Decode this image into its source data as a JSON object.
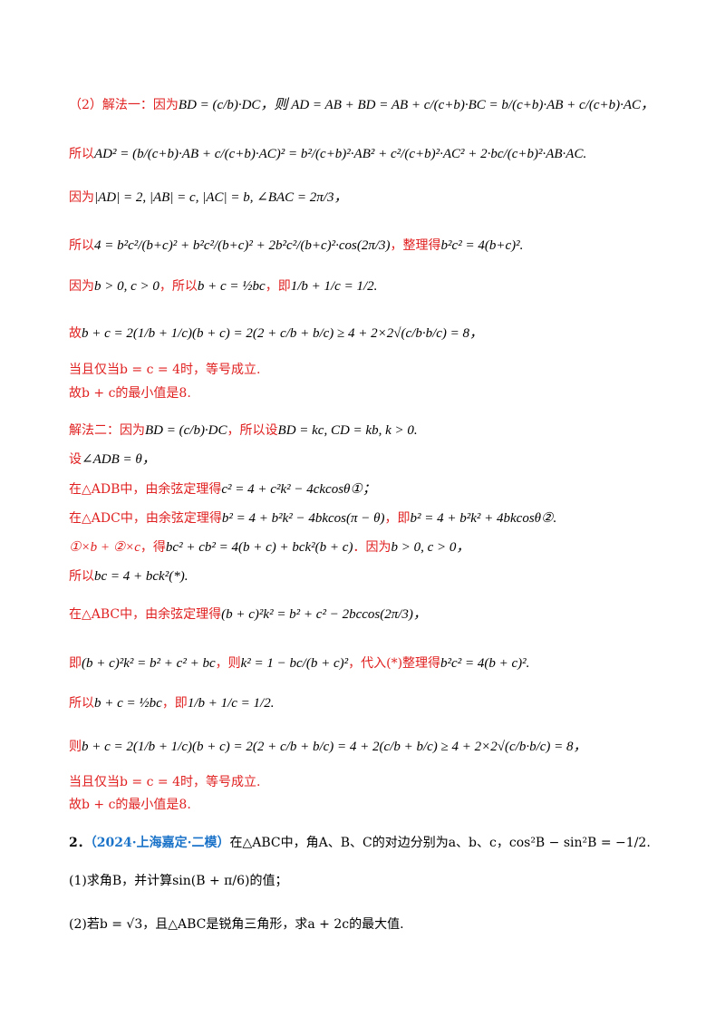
{
  "solution1": {
    "l1_label": "（2）解法一：因为",
    "l1_math": "BD = (c/b)·DC，则 AD = AB + BD = AB + c/(c+b)·BC = b/(c+b)·AB + c/(c+b)·AC，",
    "l2_label": "所以",
    "l2_math": "AD² = (b/(c+b)·AB + c/(c+b)·AC)² = b²/(c+b)²·AB² + c²/(c+b)²·AC² + 2·bc/(c+b)²·AB·AC.",
    "l3_label": "因为",
    "l3_math": "|AD| = 2, |AB| = c, |AC| = b, ∠BAC = 2π/3，",
    "l4_label": "所以",
    "l4_math": "4 = b²c²/(b+c)² + b²c²/(b+c)² + 2b²c²/(b+c)²·cos(2π/3)",
    "l4_tail": "，整理得",
    "l4_math2": "b²c² = 4(b+c)².",
    "l5_label": "因为",
    "l5_math": "b > 0, c > 0",
    "l5_mid": "，所以",
    "l5_math2": "b + c = ½bc",
    "l5_mid2": "，即",
    "l5_math3": "1/b + 1/c = 1/2.",
    "l6_label": "故",
    "l6_math": "b + c = 2(1/b + 1/c)(b + c) = 2(2 + c/b + b/c) ≥ 4 + 2×2√(c/b·b/c) = 8，",
    "l7": "当且仅当b = c = 4时，等号成立.",
    "l8": "故b + c的最小值是8."
  },
  "solution2": {
    "l1_label": "解法二：因为",
    "l1_math": "BD = (c/b)·DC",
    "l1_mid": "，所以设",
    "l1_math2": "BD = kc, CD = kb, k > 0.",
    "l2_label": "设",
    "l2_math": "∠ADB = θ，",
    "l3_label": "在△ADB中，由余弦定理得",
    "l3_math": "c² = 4 + c²k² − 4ckcosθ①；",
    "l4_label": "在△ADC中，由余弦定理得",
    "l4_math": "b² = 4 + b²k² − 4bkcos(π − θ)",
    "l4_mid": "，即",
    "l4_math2": "b² = 4 + b²k² + 4bkcosθ②.",
    "l5_math": "①×b + ②×c",
    "l5_mid": "，得",
    "l5_math2": "bc² + cb² = 4(b + c) + bck²(b + c)",
    "l5_tail": "．因为",
    "l5_math3": "b > 0, c > 0，",
    "l6_label": "所以",
    "l6_math": "bc = 4 + bck²(*).",
    "l7_label": "在△ABC中，由余弦定理得",
    "l7_math": "(b + c)²k² = b² + c² − 2bccos(2π/3)，",
    "l8_label": "即",
    "l8_math": "(b + c)²k² = b² + c² + bc",
    "l8_mid": "，则",
    "l8_math2": "k² = 1 − bc/(b + c)²",
    "l8_mid2": "，代入(*)整理得",
    "l8_math3": "b²c² = 4(b + c)².",
    "l9_label": "所以",
    "l9_math": "b + c = ½bc",
    "l9_mid": "，即",
    "l9_math2": "1/b + 1/c = 1/2.",
    "l10_label": "则",
    "l10_math": "b + c = 2(1/b + 1/c)(b + c) = 2(2 + c/b + b/c) = 4 + 2(c/b + b/c) ≥ 4 + 2×2√(c/b·b/c) = 8，",
    "l11": "当且仅当b = c = 4时，等号成立.",
    "l12": "故b + c的最小值是8."
  },
  "question2": {
    "number": "2．",
    "source": "（2024·上海嘉定·二模）",
    "stem": "在△ABC中，角A、B、C的对边分别为a、b、c，cos²B − sin²B = −1/2.",
    "part1": "(1)求角B，并计算sin(B + π/6)的值；",
    "part2": "(2)若b = √3，且△ABC是锐角三角形，求a + 2c的最大值."
  }
}
